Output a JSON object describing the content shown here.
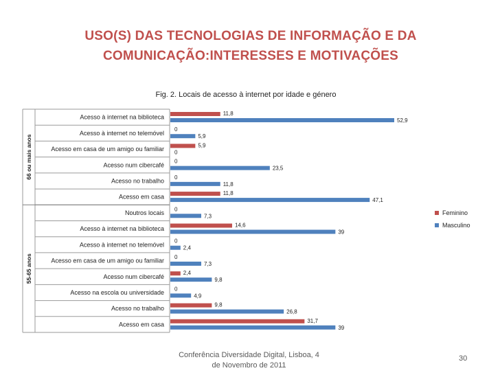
{
  "slide": {
    "title_line1": "USO(S) DAS TECNOLOGIAS DE INFORMAÇÃO E DA",
    "title_line2": "COMUNICAÇÃO:INTERESSES E MOTIVAÇÕES",
    "caption": "Fig. 2. Locais de acesso à internet por idade e género",
    "footer_line1": "Conferência Diversidade Digital, Lisboa, 4",
    "footer_line2": "de Novembro de 2011",
    "page_number": "30"
  },
  "chart_data": {
    "type": "bar",
    "orientation": "horizontal",
    "title": "",
    "xlabel": "",
    "ylabel": "",
    "xlim": [
      0,
      55
    ],
    "grid": false,
    "legend": "right",
    "colors": {
      "Feminino": "#c0504d",
      "Masculino": "#4f81bd"
    },
    "groups": [
      {
        "name": "66 ou mais anos",
        "category_indices": [
          0,
          1,
          2,
          3,
          4,
          5
        ]
      },
      {
        "name": "55-65 anos",
        "category_indices": [
          6,
          7,
          8,
          9,
          10,
          11,
          12,
          13
        ]
      }
    ],
    "categories": [
      "Acesso à internet na biblioteca",
      "Acesso à internet no telemóvel",
      "Acesso em casa de um amigo ou familiar",
      "Acesso num cibercafé",
      "Acesso no trabalho",
      "Acesso em casa",
      "Noutros locais",
      "Acesso à internet na biblioteca",
      "Acesso à internet no telemóvel",
      "Acesso em casa de um amigo ou familiar",
      "Acesso num cibercafé",
      "Acesso na escola ou universidade",
      "Acesso no trabalho",
      "Acesso em casa"
    ],
    "series": [
      {
        "name": "Feminino",
        "values": [
          11.8,
          0,
          5.9,
          0,
          0,
          11.8,
          0,
          14.6,
          0,
          0,
          2.4,
          0,
          9.8,
          31.7
        ],
        "labels": [
          "11,8",
          "0",
          "5,9",
          "0",
          "0",
          "11,8",
          "0",
          "14,6",
          "0",
          "0",
          "2,4",
          "0",
          "9,8",
          "31,7"
        ]
      },
      {
        "name": "Masculino",
        "values": [
          52.9,
          5.9,
          0,
          23.5,
          11.8,
          47.1,
          7.3,
          39,
          2.4,
          7.3,
          9.8,
          4.9,
          26.8,
          39
        ],
        "labels": [
          "52,9",
          "5,9",
          "0",
          "23,5",
          "11,8",
          "47,1",
          "7,3",
          "39",
          "2,4",
          "7,3",
          "9,8",
          "4,9",
          "26,8",
          "39"
        ]
      }
    ]
  }
}
